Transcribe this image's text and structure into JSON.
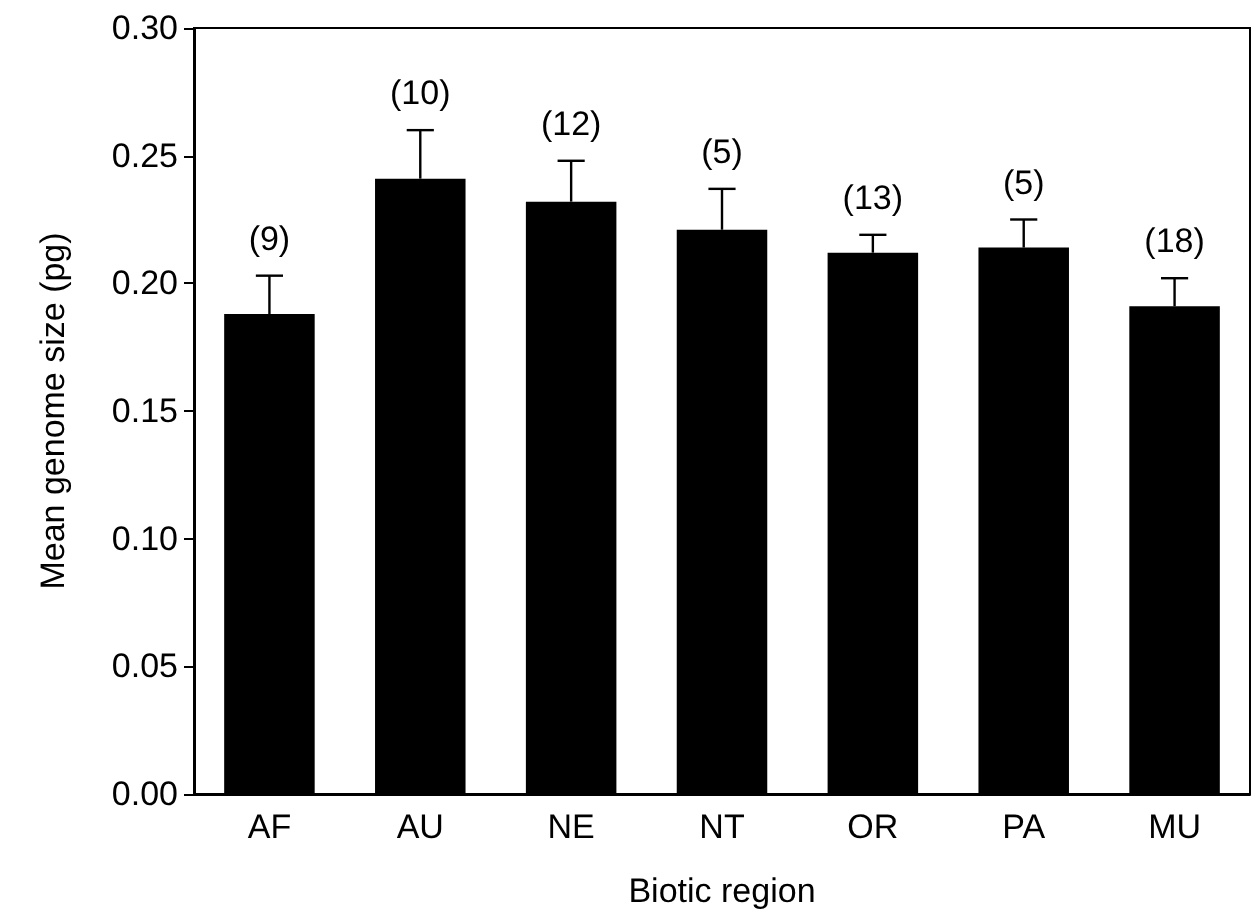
{
  "chart_data": {
    "type": "bar",
    "xlabel": "Biotic region",
    "ylabel": "Mean genome size (pg)",
    "categories": [
      "AF",
      "AU",
      "NE",
      "NT",
      "OR",
      "PA",
      "MU"
    ],
    "values": [
      0.188,
      0.241,
      0.232,
      0.221,
      0.212,
      0.214,
      0.191
    ],
    "errors": [
      [
        0.188,
        0.203
      ],
      [
        0.241,
        0.26
      ],
      [
        0.232,
        0.248
      ],
      [
        0.221,
        0.237
      ],
      [
        0.212,
        0.219
      ],
      [
        0.214,
        0.225
      ],
      [
        0.191,
        0.202
      ]
    ],
    "color": "#000000",
    "ylim": [
      0,
      0.3
    ],
    "yticks": [
      {
        "value": 0,
        "label": "0.00"
      },
      {
        "value": 0.05,
        "label": "0.05"
      },
      {
        "value": 0.1,
        "label": "0.10"
      },
      {
        "value": 0.15,
        "label": "0.15"
      },
      {
        "value": 0.2,
        "label": "0.20"
      },
      {
        "value": 0.25,
        "label": "0.25"
      },
      {
        "value": 0.3,
        "label": "0.30"
      }
    ],
    "annotations": [
      {
        "text": "(9)",
        "x": "AF",
        "y": 0.203
      },
      {
        "text": "(10)",
        "x": "AU",
        "y": 0.26
      },
      {
        "text": "(12)",
        "x": "NE",
        "y": 0.248
      },
      {
        "text": "(5)",
        "x": "NT",
        "y": 0.237
      },
      {
        "text": "(13)",
        "x": "OR",
        "y": 0.219
      },
      {
        "text": "(5)",
        "x": "PA",
        "y": 0.225
      },
      {
        "text": "(18)",
        "x": "MU",
        "y": 0.202
      }
    ],
    "grid": false
  }
}
